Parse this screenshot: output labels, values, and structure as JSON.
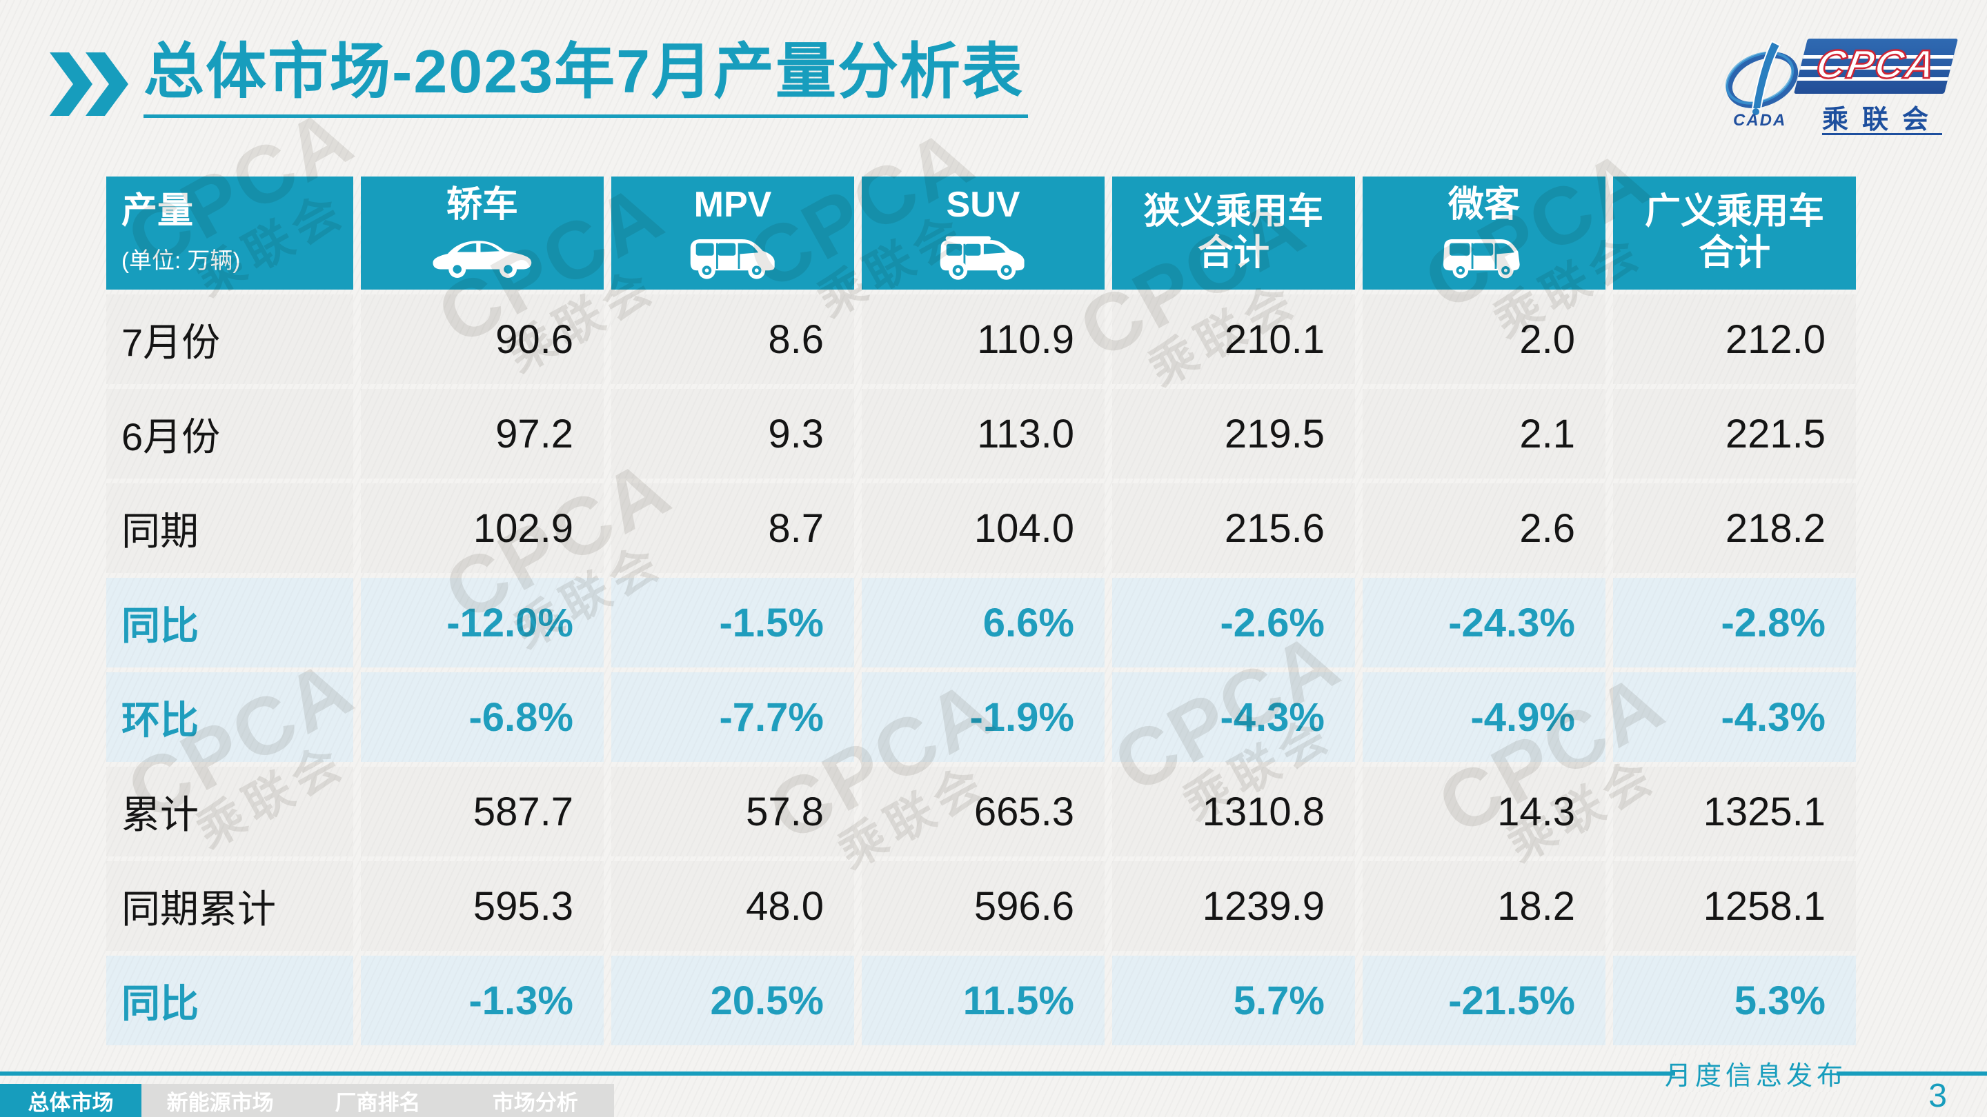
{
  "title": {
    "part_bold": "总体市场",
    "part_rest": "-2023年7月产量分析表"
  },
  "logo": {
    "cpca": "CPCA",
    "cada": "CADA",
    "chenglianhui": "乘联会"
  },
  "table": {
    "header": {
      "col0_title": "产量",
      "col0_sub": "(单位: 万辆)",
      "columns": [
        {
          "label": "轿车",
          "icon": "sedan-icon"
        },
        {
          "label": "MPV",
          "icon": "mpv-icon"
        },
        {
          "label": "SUV",
          "icon": "suv-icon"
        },
        {
          "label": "狭义乘用车\n合计",
          "icon": ""
        },
        {
          "label": "微客",
          "icon": "microvan-icon"
        },
        {
          "label": "广义乘用车\n合计",
          "icon": ""
        }
      ]
    },
    "rows": [
      {
        "label": "7月份",
        "type": "value",
        "values": [
          "90.6",
          "8.6",
          "110.9",
          "210.1",
          "2.0",
          "212.0"
        ]
      },
      {
        "label": "6月份",
        "type": "value",
        "values": [
          "97.2",
          "9.3",
          "113.0",
          "219.5",
          "2.1",
          "221.5"
        ]
      },
      {
        "label": "同期",
        "type": "value",
        "values": [
          "102.9",
          "8.7",
          "104.0",
          "215.6",
          "2.6",
          "218.2"
        ]
      },
      {
        "label": "同比",
        "type": "percent",
        "values": [
          "-12.0%",
          "-1.5%",
          "6.6%",
          "-2.6%",
          "-24.3%",
          "-2.8%"
        ]
      },
      {
        "label": "环比",
        "type": "percent",
        "values": [
          "-6.8%",
          "-7.7%",
          "-1.9%",
          "-4.3%",
          "-4.9%",
          "-4.3%"
        ]
      },
      {
        "label": "累计",
        "type": "value",
        "values": [
          "587.7",
          "57.8",
          "665.3",
          "1310.8",
          "14.3",
          "1325.1"
        ]
      },
      {
        "label": "同期累计",
        "type": "value",
        "values": [
          "595.3",
          "48.0",
          "596.6",
          "1239.9",
          "18.2",
          "1258.1"
        ]
      },
      {
        "label": "同比",
        "type": "percent",
        "values": [
          "-1.3%",
          "20.5%",
          "11.5%",
          "5.7%",
          "-21.5%",
          "5.3%"
        ]
      }
    ]
  },
  "footer": {
    "tabs": [
      {
        "label": "总体市场",
        "active": true
      },
      {
        "label": "新能源市场",
        "active": false
      },
      {
        "label": "厂商排名",
        "active": false
      },
      {
        "label": "市场分析",
        "active": false
      }
    ],
    "publication": "月度信息发布",
    "page_number": "3"
  },
  "watermark": {
    "line1": "CPCA",
    "line2": "乘联会"
  },
  "colors": {
    "accent": "#179dbd",
    "percent_text": "#1f9dbd",
    "row_bg": "#efeeec",
    "percent_row_bg": "#e4eff5",
    "logo_blue": "#1d4f9e",
    "logo_red": "#d02433"
  }
}
